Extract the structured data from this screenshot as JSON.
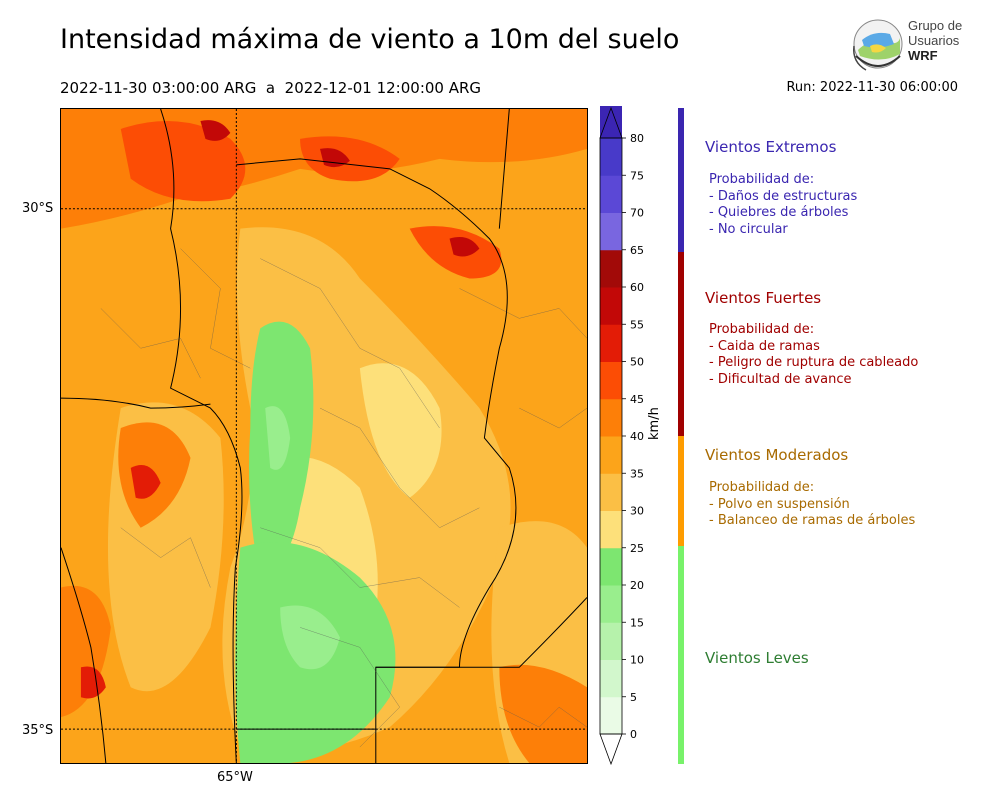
{
  "header": {
    "title": "Intensidad máxima de viento a 10m del suelo",
    "period": "2022-11-30 03:00:00 ARG  a  2022-12-01 12:00:00 ARG",
    "run": "Run: 2022-11-30 06:00:00"
  },
  "logo": {
    "line1": "Grupo de",
    "line2": "Usuarios",
    "line3": "WRF"
  },
  "map": {
    "lat_labels": [
      "30°S",
      "35°S"
    ],
    "lon_labels": [
      "65°W"
    ]
  },
  "colorbar": {
    "units": "km/h",
    "ticks": [
      "0",
      "5",
      "10",
      "15",
      "20",
      "25",
      "30",
      "35",
      "40",
      "45",
      "50",
      "55",
      "60",
      "65",
      "70",
      "75",
      "80"
    ],
    "colors": [
      "#eafbe6",
      "#d2f7cc",
      "#b6f2ab",
      "#99ee8d",
      "#7de670",
      "#fde07a",
      "#fbbf45",
      "#fca41a",
      "#fd7f08",
      "#fc4d05",
      "#e31c06",
      "#c20807",
      "#a20a08",
      "#7966e0",
      "#5b48d6",
      "#483ac9",
      "#3b25b3"
    ]
  },
  "categories": [
    {
      "title": "Vientos Extremos",
      "color": "#3a26b0",
      "lines": [
        "Probabilidad de:",
        "- Daños de estructuras",
        "- Quiebres de árboles",
        "- No circular"
      ]
    },
    {
      "title": "Vientos Fuertes",
      "color": "#a00000",
      "lines": [
        "Probabilidad de:",
        "- Caida de ramas",
        "- Peligro de ruptura de cableado",
        "- Dificultad de avance"
      ]
    },
    {
      "title": "Vientos Moderados",
      "color": "#a86a00",
      "lines": [
        "Probabilidad de:",
        "- Polvo en suspensión",
        "- Balanceo de ramas de árboles"
      ]
    },
    {
      "title": "Vientos Leves",
      "color": "#2e7d32",
      "lines": []
    }
  ],
  "category_bar_colors": [
    "#3a26b0",
    "#a00000",
    "#fe9c00",
    "#78f26a"
  ]
}
